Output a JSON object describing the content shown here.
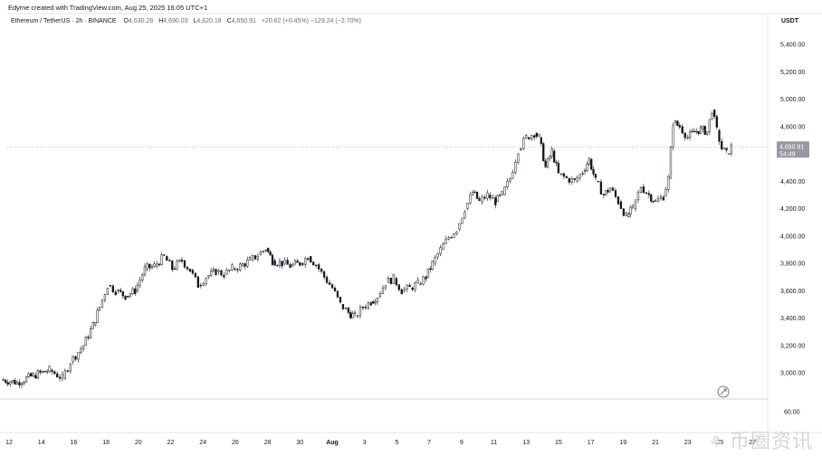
{
  "header": {
    "caption": "Edyme created with TradingView.com, Aug 25, 2025 16:05 UTC+1",
    "symbol_title": "Ethereum / TetherUS · 2h · BINANCE",
    "ohlc": {
      "o_label": "O",
      "o_value": "4,630.28",
      "h_label": "H",
      "h_value": "4,690.03",
      "l_label": "L",
      "l_value": "4,620.18",
      "c_label": "C",
      "c_value": "4,650.91",
      "change": "+20.62 (+0.45%)",
      "extra": "−129.24 (−2.70%)"
    },
    "currency": "USDT"
  },
  "price_badge": {
    "price": "4,650.91",
    "countdown": "54:49"
  },
  "volume_axis_label": "60.00",
  "watermark": {
    "logo": "⚘",
    "text": "币圈资讯"
  },
  "chart_data": {
    "type": "candlestick",
    "price_axis_ticks": [
      "5,400.00",
      "5,200.00",
      "5,000.00",
      "4,800.00",
      "4,600.00",
      "4,400.00",
      "4,200.00",
      "4,000.00",
      "3,800.00",
      "3,600.00",
      "3,400.00",
      "3,200.00",
      "3,000.00"
    ],
    "x_tick_labels": [
      "12",
      "14",
      "16",
      "18",
      "20",
      "22",
      "24",
      "26",
      "28",
      "30",
      "Aug",
      "3",
      "5",
      "7",
      "9",
      "11",
      "13",
      "15",
      "17",
      "19",
      "21",
      "23",
      "25",
      "27"
    ],
    "ylim": [
      2900,
      5500
    ],
    "last_price": 4650.91,
    "series": [
      {
        "values": [
          [
            11.5,
            2950
          ],
          [
            12.5,
            2930
          ],
          [
            13.5,
            2980
          ],
          [
            14.5,
            3020
          ],
          [
            15.3,
            2960
          ],
          [
            15.8,
            3080
          ],
          [
            16.6,
            3200
          ],
          [
            17.2,
            3350
          ],
          [
            17.6,
            3480
          ],
          [
            18.1,
            3640
          ],
          [
            18.6,
            3600
          ],
          [
            19.2,
            3560
          ],
          [
            19.8,
            3600
          ],
          [
            20.4,
            3760
          ],
          [
            21.0,
            3780
          ],
          [
            21.6,
            3850
          ],
          [
            22.1,
            3760
          ],
          [
            22.7,
            3820
          ],
          [
            23.2,
            3750
          ],
          [
            23.7,
            3640
          ],
          [
            24.2,
            3700
          ],
          [
            24.8,
            3740
          ],
          [
            25.3,
            3720
          ],
          [
            25.8,
            3760
          ],
          [
            26.3,
            3780
          ],
          [
            26.9,
            3820
          ],
          [
            27.4,
            3860
          ],
          [
            27.9,
            3910
          ],
          [
            28.3,
            3820
          ],
          [
            28.9,
            3800
          ],
          [
            29.4,
            3780
          ],
          [
            30.0,
            3800
          ],
          [
            30.5,
            3850
          ],
          [
            31.0,
            3790
          ],
          [
            31.5,
            3700
          ],
          [
            32.0,
            3620
          ],
          [
            32.5,
            3500
          ],
          [
            33.0,
            3440
          ],
          [
            33.4,
            3410
          ],
          [
            33.9,
            3480
          ],
          [
            34.4,
            3520
          ],
          [
            34.8,
            3560
          ],
          [
            35.3,
            3660
          ],
          [
            35.8,
            3690
          ],
          [
            36.3,
            3600
          ],
          [
            36.8,
            3620
          ],
          [
            37.3,
            3650
          ],
          [
            37.8,
            3700
          ],
          [
            38.2,
            3800
          ],
          [
            38.7,
            3900
          ],
          [
            39.2,
            3990
          ],
          [
            39.7,
            4050
          ],
          [
            40.2,
            4200
          ],
          [
            40.7,
            4320
          ],
          [
            41.1,
            4250
          ],
          [
            41.6,
            4300
          ],
          [
            42.1,
            4250
          ],
          [
            42.5,
            4300
          ],
          [
            43.0,
            4420
          ],
          [
            43.5,
            4630
          ],
          [
            44.0,
            4720
          ],
          [
            44.5,
            4750
          ],
          [
            44.8,
            4720
          ],
          [
            45.2,
            4500
          ],
          [
            45.6,
            4620
          ],
          [
            46.0,
            4450
          ],
          [
            46.5,
            4420
          ],
          [
            47.0,
            4400
          ],
          [
            47.5,
            4470
          ],
          [
            47.9,
            4560
          ],
          [
            48.3,
            4400
          ],
          [
            48.8,
            4300
          ],
          [
            49.2,
            4350
          ],
          [
            49.7,
            4250
          ],
          [
            50.2,
            4140
          ],
          [
            50.6,
            4200
          ],
          [
            51.1,
            4360
          ],
          [
            51.6,
            4300
          ],
          [
            52.0,
            4250
          ],
          [
            52.5,
            4290
          ],
          [
            52.8,
            4420
          ],
          [
            53.1,
            4830
          ],
          [
            53.5,
            4800
          ],
          [
            54.0,
            4720
          ],
          [
            54.4,
            4760
          ],
          [
            54.8,
            4780
          ],
          [
            55.2,
            4760
          ],
          [
            55.5,
            4920
          ],
          [
            55.8,
            4770
          ],
          [
            56.1,
            4640
          ],
          [
            56.4,
            4600
          ],
          [
            56.7,
            4650
          ]
        ]
      }
    ],
    "volume_axis": [
      "60.00"
    ]
  }
}
